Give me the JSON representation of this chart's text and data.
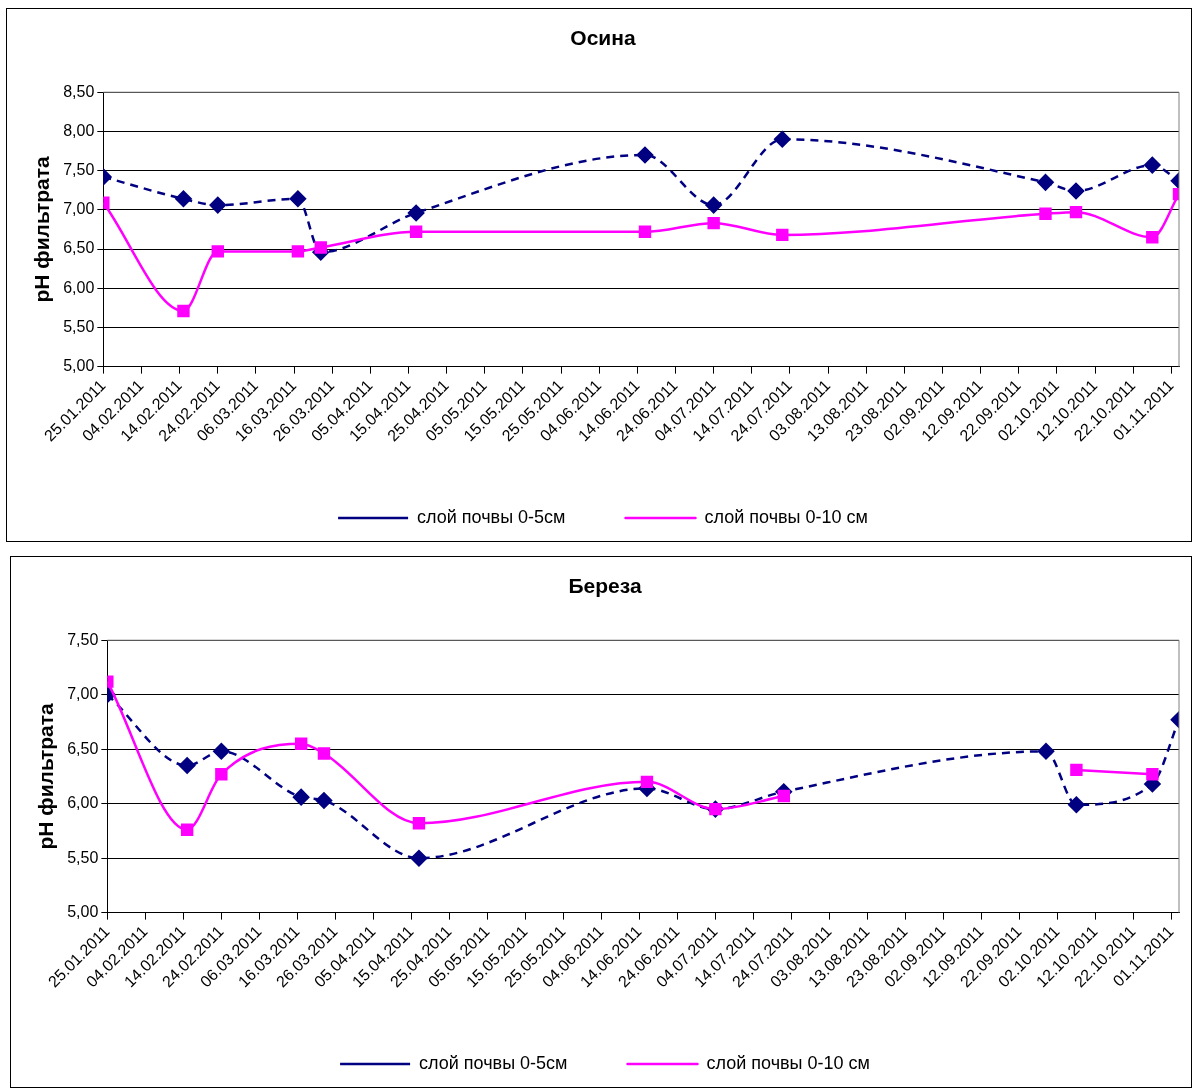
{
  "chart_data": [
    {
      "type": "line",
      "title": "Осина",
      "ylabel": "pH фильтрата",
      "legend": "bottom",
      "grid": "y",
      "x": [
        "2011-01-25",
        "2011-02-15",
        "2011-02-24",
        "2011-03-17",
        "2011-03-23",
        "2011-04-17",
        "2011-06-16",
        "2011-07-04",
        "2011-07-22",
        "2011-09-29",
        "2011-10-07",
        "2011-10-27",
        "2011-11-03"
      ],
      "xlim": [
        "2011-01-25",
        "2011-11-03"
      ],
      "xticks": [
        {
          "value": "2011-01-25",
          "label": "25.01.2011"
        },
        {
          "value": "2011-02-04",
          "label": "04.02.2011"
        },
        {
          "value": "2011-02-14",
          "label": "14.02.2011"
        },
        {
          "value": "2011-02-24",
          "label": "24.02.2011"
        },
        {
          "value": "2011-03-06",
          "label": "06.03.2011"
        },
        {
          "value": "2011-03-16",
          "label": "16.03.2011"
        },
        {
          "value": "2011-03-26",
          "label": "26.03.2011"
        },
        {
          "value": "2011-04-05",
          "label": "05.04.2011"
        },
        {
          "value": "2011-04-15",
          "label": "15.04.2011"
        },
        {
          "value": "2011-04-25",
          "label": "25.04.2011"
        },
        {
          "value": "2011-05-05",
          "label": "05.05.2011"
        },
        {
          "value": "2011-05-15",
          "label": "15.05.2011"
        },
        {
          "value": "2011-05-25",
          "label": "25.05.2011"
        },
        {
          "value": "2011-06-04",
          "label": "04.06.2011"
        },
        {
          "value": "2011-06-14",
          "label": "14.06.2011"
        },
        {
          "value": "2011-06-24",
          "label": "24.06.2011"
        },
        {
          "value": "2011-07-04",
          "label": "04.07.2011"
        },
        {
          "value": "2011-07-14",
          "label": "14.07.2011"
        },
        {
          "value": "2011-07-24",
          "label": "24.07.2011"
        },
        {
          "value": "2011-08-03",
          "label": "03.08.2011"
        },
        {
          "value": "2011-08-13",
          "label": "13.08.2011"
        },
        {
          "value": "2011-08-23",
          "label": "23.08.2011"
        },
        {
          "value": "2011-09-02",
          "label": "02.09.2011"
        },
        {
          "value": "2011-09-12",
          "label": "12.09.2011"
        },
        {
          "value": "2011-09-22",
          "label": "22.09.2011"
        },
        {
          "value": "2011-10-02",
          "label": "02.10.2011"
        },
        {
          "value": "2011-10-12",
          "label": "12.10.2011"
        },
        {
          "value": "2011-10-22",
          "label": "22.10.2011"
        },
        {
          "value": "2011-11-01",
          "label": "01.11.2011"
        }
      ],
      "ylim": [
        5,
        8.5
      ],
      "yticks": [
        {
          "value": 5,
          "label": "5,00"
        },
        {
          "value": 5.5,
          "label": "5,50"
        },
        {
          "value": 6,
          "label": "6,00"
        },
        {
          "value": 6.5,
          "label": "6,50"
        },
        {
          "value": 7,
          "label": "7,00"
        },
        {
          "value": 7.5,
          "label": "7,50"
        },
        {
          "value": 8,
          "label": "8,00"
        },
        {
          "value": 8.5,
          "label": "8,50"
        }
      ],
      "series": [
        {
          "name": "слой почвы 0-5см",
          "color": "#000080",
          "marker": "diamond",
          "line_style": "dashed",
          "values": [
            7.42,
            7.14,
            7.06,
            7.14,
            6.46,
            6.96,
            7.7,
            7.06,
            7.9,
            7.35,
            7.24,
            7.57,
            7.37
          ]
        },
        {
          "name": "слой почвы 0-10 см",
          "color": "#ff00ff",
          "marker": "square",
          "line_style": "solid",
          "values": [
            7.09,
            5.71,
            6.47,
            6.47,
            6.52,
            6.72,
            6.72,
            6.83,
            6.68,
            6.95,
            6.97,
            6.65,
            7.2
          ]
        }
      ]
    },
    {
      "type": "line",
      "title": "Береза",
      "ylabel": "pH фильтрата",
      "legend": "bottom",
      "grid": "y",
      "x": [
        "2011-01-25",
        "2011-02-15",
        "2011-02-24",
        "2011-03-17",
        "2011-03-23",
        "2011-04-17",
        "2011-06-16",
        "2011-07-04",
        "2011-07-22",
        "2011-09-29",
        "2011-10-07",
        "2011-10-27",
        "2011-11-03"
      ],
      "xlim": [
        "2011-01-25",
        "2011-11-03"
      ],
      "xticks": [
        {
          "value": "2011-01-25",
          "label": "25.01.2011"
        },
        {
          "value": "2011-02-04",
          "label": "04.02.2011"
        },
        {
          "value": "2011-02-14",
          "label": "14.02.2011"
        },
        {
          "value": "2011-02-24",
          "label": "24.02.2011"
        },
        {
          "value": "2011-03-06",
          "label": "06.03.2011"
        },
        {
          "value": "2011-03-16",
          "label": "16.03.2011"
        },
        {
          "value": "2011-03-26",
          "label": "26.03.2011"
        },
        {
          "value": "2011-04-05",
          "label": "05.04.2011"
        },
        {
          "value": "2011-04-15",
          "label": "15.04.2011"
        },
        {
          "value": "2011-04-25",
          "label": "25.04.2011"
        },
        {
          "value": "2011-05-05",
          "label": "05.05.2011"
        },
        {
          "value": "2011-05-15",
          "label": "15.05.2011"
        },
        {
          "value": "2011-05-25",
          "label": "25.05.2011"
        },
        {
          "value": "2011-06-04",
          "label": "04.06.2011"
        },
        {
          "value": "2011-06-14",
          "label": "14.06.2011"
        },
        {
          "value": "2011-06-24",
          "label": "24.06.2011"
        },
        {
          "value": "2011-07-04",
          "label": "04.07.2011"
        },
        {
          "value": "2011-07-14",
          "label": "14.07.2011"
        },
        {
          "value": "2011-07-24",
          "label": "24.07.2011"
        },
        {
          "value": "2011-08-03",
          "label": "03.08.2011"
        },
        {
          "value": "2011-08-13",
          "label": "13.08.2011"
        },
        {
          "value": "2011-08-23",
          "label": "23.08.2011"
        },
        {
          "value": "2011-09-02",
          "label": "02.09.2011"
        },
        {
          "value": "2011-09-12",
          "label": "12.09.2011"
        },
        {
          "value": "2011-09-22",
          "label": "22.09.2011"
        },
        {
          "value": "2011-10-02",
          "label": "02.10.2011"
        },
        {
          "value": "2011-10-12",
          "label": "12.10.2011"
        },
        {
          "value": "2011-10-22",
          "label": "22.10.2011"
        },
        {
          "value": "2011-11-01",
          "label": "01.11.2011"
        }
      ],
      "ylim": [
        5,
        7.5
      ],
      "yticks": [
        {
          "value": 5,
          "label": "5,00"
        },
        {
          "value": 5.5,
          "label": "5,50"
        },
        {
          "value": 6,
          "label": "6,00"
        },
        {
          "value": 6.5,
          "label": "6,50"
        },
        {
          "value": 7,
          "label": "7,00"
        },
        {
          "value": 7.5,
          "label": "7,50"
        }
      ],
      "series": [
        {
          "name": "слой почвы 0-5см",
          "color": "#000080",
          "marker": "diamond",
          "line_style": "dashed",
          "values": [
            7.0,
            6.35,
            6.48,
            6.06,
            6.03,
            5.5,
            6.14,
            5.95,
            6.11,
            6.48,
            5.99,
            6.18,
            6.77
          ]
        },
        {
          "name": "слой почвы 0-10 см",
          "color": "#ff00ff",
          "marker": "square",
          "line_style": "solid",
          "values": [
            7.12,
            5.76,
            6.27,
            6.55,
            6.46,
            5.82,
            6.2,
            5.95,
            6.07,
            null,
            6.31,
            6.27,
            null
          ]
        }
      ]
    }
  ]
}
